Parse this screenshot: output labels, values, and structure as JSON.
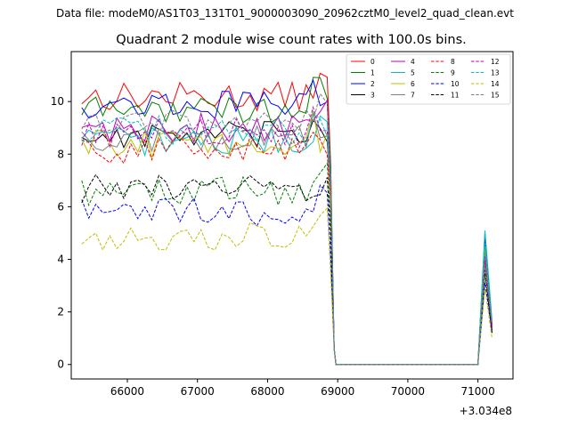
{
  "suptitle": "Data file: modeM0/AS1T03_131T01_9000003090_20962cztM0_level2_quad_clean.evt",
  "chart_data": {
    "type": "line",
    "title": "Quadrant 2 module wise count rates with 100.0s bins.",
    "xlabel": "",
    "ylabel": "",
    "x_offset_label": "+3.034e8",
    "xlim": [
      65200,
      71500
    ],
    "ylim": [
      -0.55,
      11.9
    ],
    "xticks": [
      66000,
      67000,
      68000,
      69000,
      70000,
      71000
    ],
    "yticks": [
      0,
      2,
      4,
      6,
      8,
      10
    ],
    "grid": false,
    "legend_placement": "top-right",
    "segment1_start": 65350,
    "segment1_step": 100,
    "segment1_count": 36,
    "segment2_x": [
      71000,
      71100,
      71200
    ],
    "series": [
      {
        "name": "0",
        "color": "#ff0000",
        "dash": false,
        "level": 10.2,
        "segment2": [
          0.0,
          4.4,
          1.6
        ]
      },
      {
        "name": "1",
        "color": "#008000",
        "dash": false,
        "level": 9.7,
        "segment2": [
          0.0,
          5.0,
          1.4
        ]
      },
      {
        "name": "2",
        "color": "#0000ff",
        "dash": false,
        "level": 9.9,
        "segment2": [
          0.0,
          4.8,
          1.5
        ]
      },
      {
        "name": "3",
        "color": "#000000",
        "dash": false,
        "level": 8.7,
        "segment2": [
          0.0,
          4.0,
          1.3
        ]
      },
      {
        "name": "4",
        "color": "#bf00bf",
        "dash": false,
        "level": 9.0,
        "segment2": [
          0.0,
          4.3,
          1.5
        ]
      },
      {
        "name": "5",
        "color": "#00bfbf",
        "dash": false,
        "level": 8.5,
        "segment2": [
          0.0,
          5.1,
          1.7
        ]
      },
      {
        "name": "6",
        "color": "#bfbf00",
        "dash": false,
        "level": 8.4,
        "segment2": [
          0.0,
          4.5,
          1.2
        ]
      },
      {
        "name": "7",
        "color": "#808080",
        "dash": false,
        "level": 8.6,
        "segment2": [
          0.0,
          4.2,
          1.4
        ]
      },
      {
        "name": "8",
        "color": "#ff0000",
        "dash": true,
        "level": 8.2,
        "segment2": [
          0.0,
          3.9,
          1.5
        ]
      },
      {
        "name": "9",
        "color": "#008000",
        "dash": true,
        "level": 6.6,
        "segment2": [
          0.0,
          3.4,
          1.2
        ]
      },
      {
        "name": "10",
        "color": "#0000ff",
        "dash": true,
        "level": 5.8,
        "segment2": [
          0.0,
          3.1,
          1.3
        ]
      },
      {
        "name": "11",
        "color": "#000000",
        "dash": true,
        "level": 6.7,
        "segment2": [
          0.0,
          3.6,
          1.2
        ]
      },
      {
        "name": "12",
        "color": "#bf00bf",
        "dash": true,
        "level": 8.8,
        "segment2": [
          0.0,
          4.1,
          1.4
        ]
      },
      {
        "name": "13",
        "color": "#00bfbf",
        "dash": true,
        "level": 8.9,
        "segment2": [
          0.0,
          4.6,
          1.6
        ]
      },
      {
        "name": "14",
        "color": "#bfbf00",
        "dash": true,
        "level": 4.9,
        "segment2": [
          0.0,
          2.9,
          1.0
        ]
      },
      {
        "name": "15",
        "color": "#808080",
        "dash": true,
        "level": 9.2,
        "segment2": [
          0.0,
          3.8,
          1.5
        ]
      }
    ]
  }
}
